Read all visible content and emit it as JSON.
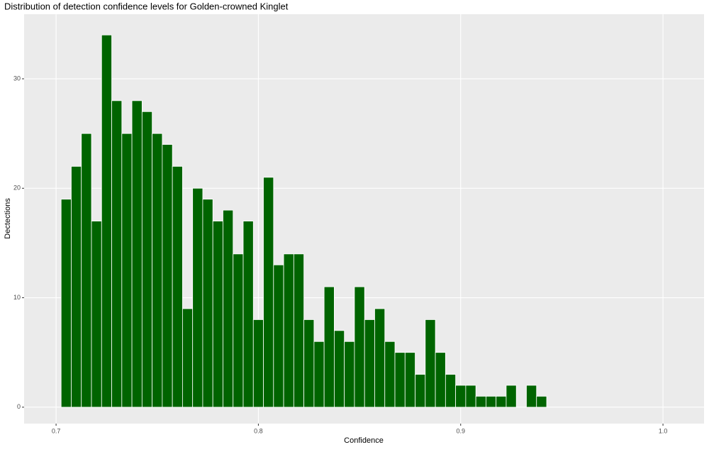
{
  "chart_data": {
    "type": "histogram",
    "title": "Distribution of detection confidence levels for Golden-crowned Kinglet",
    "x_label": "Confidence",
    "y_label": "Dectections",
    "bins": [
      0.7025,
      0.7075,
      0.7125,
      0.7175,
      0.7225,
      0.7275,
      0.7325,
      0.7375,
      0.7425,
      0.7475,
      0.7525,
      0.7575,
      0.7625,
      0.7675,
      0.7725,
      0.7775,
      0.7825,
      0.7875,
      0.7925,
      0.7975,
      0.8025,
      0.8075,
      0.8125,
      0.8175,
      0.8225,
      0.8275,
      0.8325,
      0.8375,
      0.8425,
      0.8475,
      0.8525,
      0.8575,
      0.8625,
      0.8675,
      0.8725,
      0.8775,
      0.8825,
      0.8875,
      0.8925,
      0.8975,
      0.9025,
      0.9075,
      0.9125,
      0.9175,
      0.9225,
      0.9275,
      0.9325,
      0.9375,
      0.9425
    ],
    "values": [
      19,
      22,
      25,
      17,
      34,
      28,
      25,
      28,
      27,
      25,
      24,
      22,
      9,
      20,
      19,
      17,
      18,
      14,
      17,
      8,
      21,
      13,
      14,
      14,
      8,
      6,
      11,
      7,
      6,
      11,
      8,
      9,
      6,
      5,
      5,
      3,
      8,
      5,
      3,
      2,
      2,
      1,
      1,
      1,
      2,
      0,
      2,
      1
    ],
    "color": "#006400",
    "xlim": [
      0.6842,
      1.0203
    ],
    "ylim": [
      -1.5,
      35.9
    ],
    "xticks": [
      0.7,
      0.8,
      0.9,
      {
        "value": 1.0,
        "label": "1.0"
      }
    ],
    "yticks": [
      0,
      10,
      20,
      30
    ],
    "grid": true
  }
}
